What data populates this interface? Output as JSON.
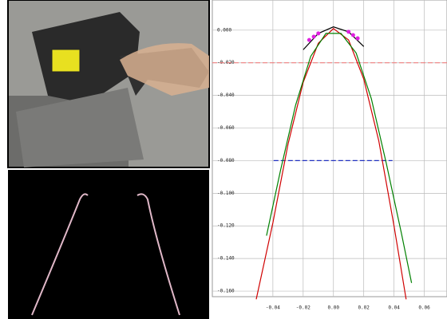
{
  "chart_data": {
    "type": "line",
    "xlim": [
      -0.08,
      0.075
    ],
    "ylim": [
      -0.1634,
      0.0185
    ],
    "xticks": [
      -0.04,
      -0.02,
      {
        "value": 0,
        "label": "0.00"
      },
      0.02,
      0.04,
      0.06
    ],
    "yticks": [
      {
        "value": 0,
        "label": "0.000"
      },
      {
        "value": -0.02,
        "label": "-0.020"
      },
      {
        "value": -0.04,
        "label": "-0.040"
      },
      {
        "value": -0.06,
        "label": "-0.060"
      },
      {
        "value": -0.08,
        "label": "-0.080"
      },
      {
        "value": -0.1,
        "label": "-0.100"
      },
      {
        "value": -0.12,
        "label": "-0.120"
      },
      {
        "value": -0.14,
        "label": "-0.140"
      },
      {
        "value": -0.16,
        "label": "-0.160"
      }
    ],
    "grid": true,
    "series": [
      {
        "color": "#f08080",
        "style": "dashed",
        "x": [
          -0.08,
          0.075
        ],
        "y": [
          -0.02,
          -0.02
        ]
      },
      {
        "color": "#2030c0",
        "style": "dashed",
        "x": [
          -0.0395,
          0.039
        ],
        "y": [
          -0.08,
          -0.08
        ]
      },
      {
        "color": "#d00000",
        "style": "solid",
        "x": [
          -0.051,
          -0.04,
          -0.03,
          -0.02,
          -0.01,
          0,
          0.01,
          0.02,
          0.03,
          0.04,
          0.048
        ],
        "y": [
          -0.165,
          -0.118,
          -0.07,
          -0.032,
          -0.008,
          0.001,
          -0.006,
          -0.03,
          -0.068,
          -0.12,
          -0.165
        ]
      },
      {
        "color": "#008000",
        "style": "solid",
        "x": [
          -0.0442,
          -0.035,
          -0.025,
          -0.015,
          -0.005,
          0.005,
          0.015,
          0.025,
          0.035,
          0.045,
          0.0516
        ],
        "y": [
          -0.126,
          -0.086,
          -0.046,
          -0.016,
          -0.002,
          -0.002,
          -0.014,
          -0.042,
          -0.082,
          -0.125,
          -0.155
        ]
      },
      {
        "color": "#000000",
        "style": "solid",
        "x": [
          -0.02,
          -0.01,
          0,
          0.01,
          0.02
        ],
        "y": [
          -0.012,
          -0.002,
          0.002,
          -0.001,
          -0.01
        ]
      },
      {
        "color": "#e020e0",
        "style": "points",
        "x": [
          -0.016,
          -0.013,
          -0.01,
          0.01,
          0.013,
          0.016
        ],
        "y": [
          -0.006,
          -0.004,
          -0.002,
          -0.001,
          -0.003,
          -0.005
        ]
      }
    ]
  }
}
